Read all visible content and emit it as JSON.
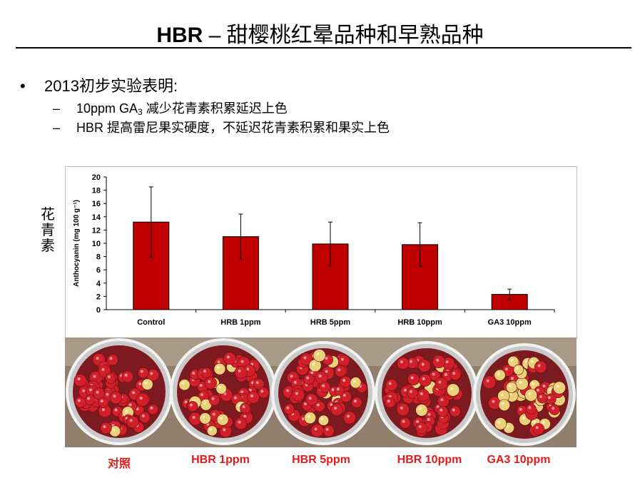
{
  "slide": {
    "title_bold": "HBR",
    "title_rest": " – 甜樱桃红晕品种和早熟品种",
    "bullet": "2013初步实验表明:",
    "sub1_a": "10ppm GA",
    "sub1_sub": "3",
    "sub1_b": " 减少花青素积累延迟上色",
    "sub2": "HBR 提高雷尼果实硬度，不延迟花青素积累和果实上色",
    "side_label": [
      "花",
      "青",
      "素"
    ],
    "photo_captions": [
      "对照",
      "HBR 1ppm",
      "HBR 5ppm",
      "HBR 10ppm",
      "GA3 10ppm"
    ]
  },
  "colors": {
    "bar_fill": "#c00000",
    "caption_red": "#e31a1a",
    "cherry_red": "#d31f2a",
    "cherry_yellow": "#e9d27a"
  },
  "chart_data": {
    "type": "bar",
    "categories": [
      "Control",
      "HRB 1ppm",
      "HRB 5ppm",
      "HRB 10ppm",
      "GA3 10ppm"
    ],
    "values": [
      13.2,
      11.0,
      9.9,
      9.8,
      2.3
    ],
    "errors": [
      5.3,
      3.4,
      3.3,
      3.3,
      0.8
    ],
    "ylabel": "Anthocyanin (mg 100 g⁻¹)",
    "ylim": [
      0,
      20
    ],
    "yticks": [
      0,
      2,
      4,
      6,
      8,
      10,
      12,
      14,
      16,
      18,
      20
    ],
    "grid": false,
    "legend": false
  }
}
